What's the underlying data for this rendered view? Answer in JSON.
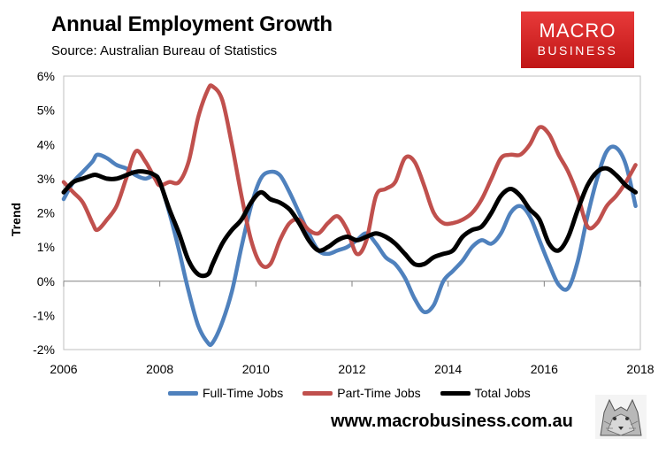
{
  "header": {
    "title": "Annual Employment Growth",
    "subtitle": "Source: Australian Bureau of Statistics"
  },
  "logo": {
    "line1": "MACRO",
    "line2": "BUSINESS"
  },
  "footer": {
    "website": "www.macrobusiness.com.au"
  },
  "colors": {
    "full_time": "#4f81bd",
    "part_time": "#c0504d",
    "total": "#000000"
  },
  "chart_data": {
    "type": "line",
    "title": "Annual Employment Growth",
    "subtitle": "Source: Australian Bureau of Statistics",
    "xlabel": "",
    "ylabel": "Trend",
    "xlim": [
      2006,
      2018
    ],
    "ylim": [
      -2,
      6
    ],
    "x_ticks": [
      "2006",
      "2008",
      "2010",
      "2012",
      "2014",
      "2016",
      "2018"
    ],
    "y_ticks": [
      "-2%",
      "-1%",
      "0%",
      "1%",
      "2%",
      "3%",
      "4%",
      "5%",
      "6%"
    ],
    "grid": false,
    "legend_position": "bottom",
    "series": [
      {
        "name": "Full-Time Jobs",
        "color": "#4f81bd",
        "x": [
          2006.0,
          2006.2,
          2006.4,
          2006.6,
          2006.7,
          2006.9,
          2007.1,
          2007.3,
          2007.5,
          2007.7,
          2007.9,
          2008.0,
          2008.2,
          2008.4,
          2008.6,
          2008.8,
          2009.0,
          2009.1,
          2009.3,
          2009.5,
          2009.7,
          2009.9,
          2010.1,
          2010.3,
          2010.5,
          2010.7,
          2010.9,
          2011.1,
          2011.3,
          2011.5,
          2011.7,
          2011.9,
          2012.1,
          2012.3,
          2012.5,
          2012.7,
          2012.9,
          2013.1,
          2013.3,
          2013.5,
          2013.7,
          2013.9,
          2014.1,
          2014.3,
          2014.5,
          2014.7,
          2014.9,
          2015.1,
          2015.3,
          2015.5,
          2015.7,
          2015.9,
          2016.1,
          2016.3,
          2016.5,
          2016.7,
          2016.9,
          2017.1,
          2017.3,
          2017.5,
          2017.7,
          2017.9
        ],
        "values": [
          2.4,
          2.9,
          3.2,
          3.5,
          3.7,
          3.6,
          3.4,
          3.3,
          3.1,
          3.0,
          3.1,
          2.9,
          2.0,
          0.9,
          -0.3,
          -1.3,
          -1.8,
          -1.8,
          -1.2,
          -0.3,
          1.0,
          2.2,
          3.0,
          3.2,
          3.1,
          2.6,
          2.0,
          1.4,
          0.9,
          0.8,
          0.9,
          1.0,
          1.2,
          1.4,
          1.1,
          0.7,
          0.5,
          0.1,
          -0.5,
          -0.9,
          -0.7,
          0.0,
          0.3,
          0.6,
          1.0,
          1.2,
          1.1,
          1.4,
          2.0,
          2.2,
          1.9,
          1.2,
          0.5,
          -0.1,
          -0.2,
          0.6,
          1.9,
          3.0,
          3.8,
          3.9,
          3.4,
          2.2
        ]
      },
      {
        "name": "Part-Time Jobs",
        "color": "#c0504d",
        "x": [
          2006.0,
          2006.2,
          2006.4,
          2006.6,
          2006.7,
          2006.9,
          2007.1,
          2007.3,
          2007.5,
          2007.7,
          2007.9,
          2008.0,
          2008.2,
          2008.4,
          2008.6,
          2008.8,
          2009.0,
          2009.1,
          2009.3,
          2009.5,
          2009.7,
          2009.9,
          2010.1,
          2010.3,
          2010.5,
          2010.7,
          2010.9,
          2011.1,
          2011.3,
          2011.5,
          2011.7,
          2011.9,
          2012.1,
          2012.3,
          2012.5,
          2012.7,
          2012.9,
          2013.1,
          2013.3,
          2013.5,
          2013.7,
          2013.9,
          2014.1,
          2014.3,
          2014.5,
          2014.7,
          2014.9,
          2015.1,
          2015.3,
          2015.5,
          2015.7,
          2015.9,
          2016.1,
          2016.3,
          2016.5,
          2016.7,
          2016.9,
          2017.1,
          2017.3,
          2017.5,
          2017.7,
          2017.9
        ],
        "values": [
          2.9,
          2.6,
          2.3,
          1.7,
          1.5,
          1.8,
          2.2,
          3.0,
          3.8,
          3.5,
          3.0,
          2.8,
          2.9,
          2.9,
          3.5,
          4.8,
          5.6,
          5.7,
          5.3,
          4.0,
          2.5,
          1.2,
          0.5,
          0.5,
          1.2,
          1.7,
          1.8,
          1.5,
          1.4,
          1.7,
          1.9,
          1.5,
          0.8,
          1.2,
          2.5,
          2.7,
          2.9,
          3.6,
          3.5,
          2.8,
          2.0,
          1.7,
          1.7,
          1.8,
          2.0,
          2.4,
          3.0,
          3.6,
          3.7,
          3.7,
          4.0,
          4.5,
          4.3,
          3.7,
          3.2,
          2.5,
          1.6,
          1.7,
          2.2,
          2.5,
          2.9,
          3.4
        ]
      },
      {
        "name": "Total Jobs",
        "color": "#000000",
        "x": [
          2006.0,
          2006.2,
          2006.4,
          2006.6,
          2006.7,
          2006.9,
          2007.1,
          2007.3,
          2007.5,
          2007.7,
          2007.9,
          2008.0,
          2008.2,
          2008.4,
          2008.6,
          2008.8,
          2009.0,
          2009.1,
          2009.3,
          2009.5,
          2009.7,
          2009.9,
          2010.1,
          2010.3,
          2010.5,
          2010.7,
          2010.9,
          2011.1,
          2011.3,
          2011.5,
          2011.7,
          2011.9,
          2012.1,
          2012.3,
          2012.5,
          2012.7,
          2012.9,
          2013.1,
          2013.3,
          2013.5,
          2013.7,
          2013.9,
          2014.1,
          2014.3,
          2014.5,
          2014.7,
          2014.9,
          2015.1,
          2015.3,
          2015.5,
          2015.7,
          2015.9,
          2016.1,
          2016.3,
          2016.5,
          2016.7,
          2016.9,
          2017.1,
          2017.3,
          2017.5,
          2017.7,
          2017.9
        ],
        "values": [
          2.6,
          2.9,
          3.0,
          3.1,
          3.1,
          3.0,
          3.0,
          3.1,
          3.2,
          3.2,
          3.1,
          2.9,
          2.1,
          1.4,
          0.6,
          0.2,
          0.2,
          0.5,
          1.1,
          1.5,
          1.8,
          2.3,
          2.6,
          2.4,
          2.3,
          2.1,
          1.7,
          1.2,
          0.9,
          1.0,
          1.2,
          1.3,
          1.2,
          1.3,
          1.4,
          1.3,
          1.1,
          0.8,
          0.5,
          0.5,
          0.7,
          0.8,
          0.9,
          1.3,
          1.5,
          1.6,
          2.0,
          2.5,
          2.7,
          2.5,
          2.1,
          1.8,
          1.1,
          0.9,
          1.3,
          2.1,
          2.8,
          3.2,
          3.3,
          3.1,
          2.8,
          2.6
        ]
      }
    ]
  }
}
